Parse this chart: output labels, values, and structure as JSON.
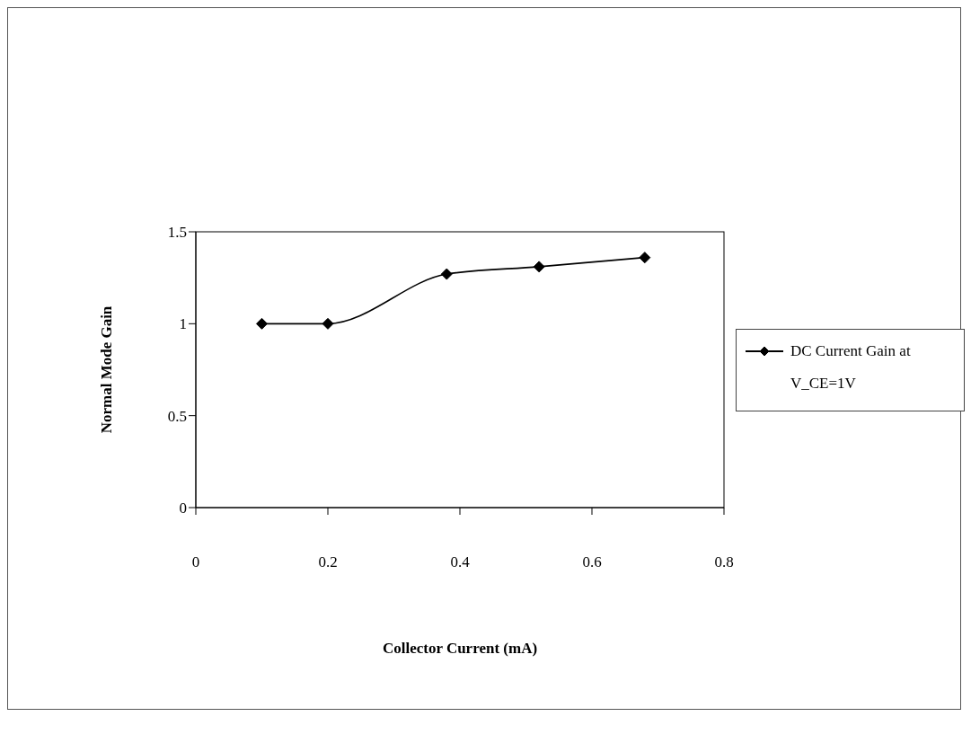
{
  "chart_data": {
    "type": "line",
    "xlabel": "Collector Current (mA)",
    "ylabel": "Normal Mode Gain",
    "xlim": [
      0,
      0.8
    ],
    "xticks": [
      0,
      0.2,
      0.4,
      0.6,
      0.8
    ],
    "ylim": [
      0,
      1.5
    ],
    "yticks": [
      0,
      0.5,
      1,
      1.5
    ],
    "series": [
      {
        "name": "DC Current Gain at V_CE=1V",
        "color": "#000000",
        "x": [
          0.1,
          0.2,
          0.38,
          0.52,
          0.68
        ],
        "values": [
          1,
          1,
          1.27,
          1.31,
          1.36
        ]
      }
    ],
    "marker": "diamond",
    "line_style": "solid",
    "legend": "right",
    "grid": false
  }
}
